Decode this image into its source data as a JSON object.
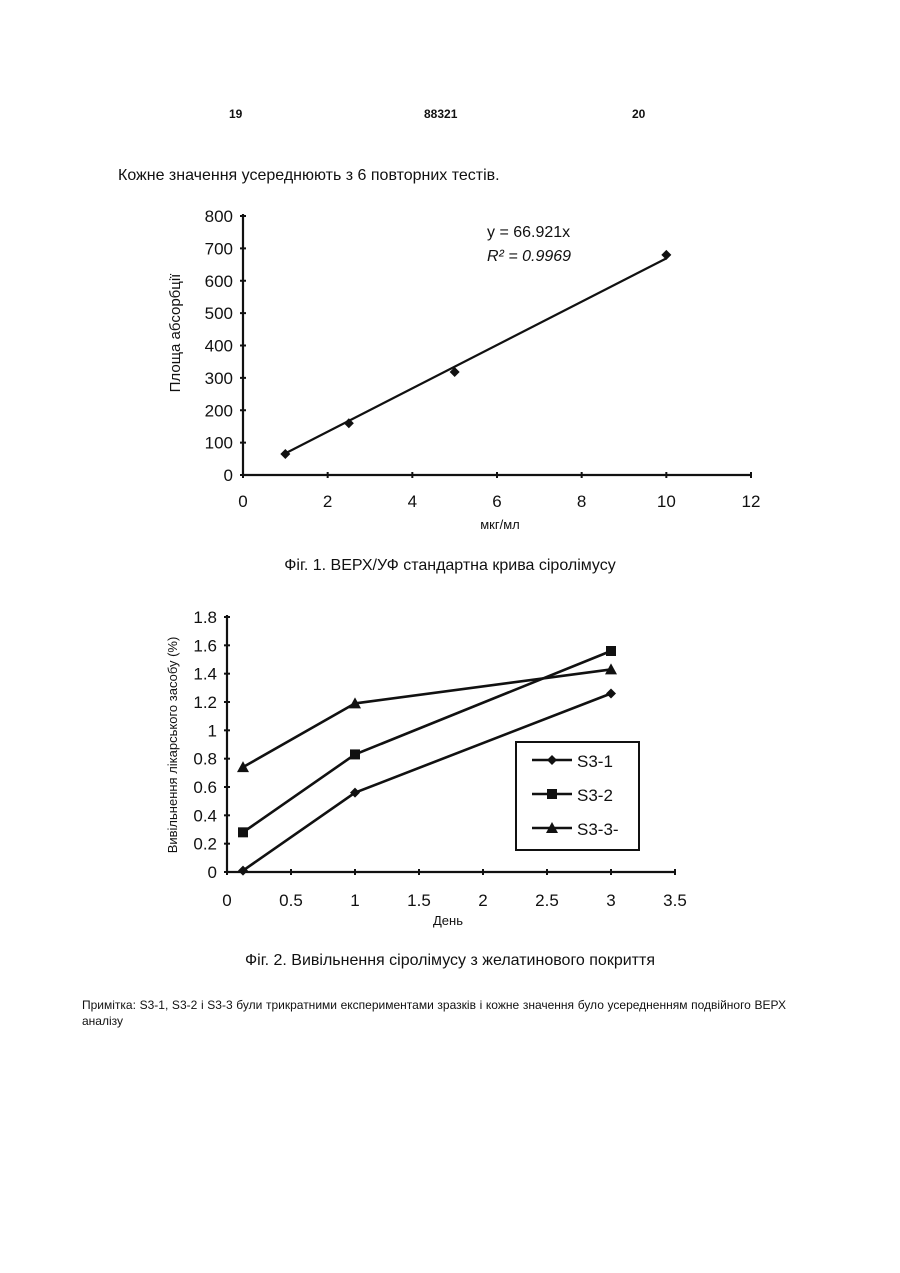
{
  "header": {
    "page_left": "19",
    "doc_number": "88321",
    "page_right": "20"
  },
  "intro_text": "Кожне значення усереднюють з 6 повторних тестів.",
  "chart_data": [
    {
      "type": "scatter",
      "xlabel": "мкг/мл",
      "ylabel": "Площа абсорбції",
      "xlim": [
        0,
        12
      ],
      "ylim": [
        0,
        800
      ],
      "x_ticks": [
        "0",
        "2",
        "4",
        "6",
        "8",
        "10",
        "12"
      ],
      "y_ticks": [
        "0",
        "100",
        "200",
        "300",
        "400",
        "500",
        "600",
        "700",
        "800"
      ],
      "grid": false,
      "series": [
        {
          "x": [
            1,
            2.5,
            5,
            10
          ],
          "values": [
            65,
            160,
            318,
            680
          ]
        }
      ],
      "trendline": {
        "slope": 66.921,
        "x_range": [
          1,
          10
        ]
      },
      "annotations": [
        "y = 66.921x",
        "R² = 0.9969"
      ]
    },
    {
      "type": "line",
      "xlabel": "День",
      "ylabel": "Вивільнення лікарського засобу (%)",
      "xlim": [
        0,
        3.5
      ],
      "ylim": [
        0,
        1.8
      ],
      "x_ticks": [
        "0",
        "0.5",
        "1",
        "1.5",
        "2",
        "2.5",
        "3",
        "3.5"
      ],
      "y_ticks": [
        "0",
        "0.2",
        "0.4",
        "0.6",
        "0.8",
        "1",
        "1.2",
        "1.4",
        "1.6",
        "1.8"
      ],
      "grid": false,
      "legend_position": "right",
      "x": [
        0.125,
        1,
        3
      ],
      "series": [
        {
          "name": "S3-1",
          "marker": "diamond",
          "values": [
            0.01,
            0.56,
            1.26
          ]
        },
        {
          "name": "S3-2",
          "marker": "square",
          "values": [
            0.28,
            0.83,
            1.56
          ]
        },
        {
          "name": "S3-3-",
          "marker": "triangle",
          "values": [
            0.74,
            1.19,
            1.43
          ]
        }
      ]
    }
  ],
  "captions": {
    "fig1": "Фіг. 1. ВЕРХ/УФ стандартна крива сіролімусу",
    "fig2": "Фіг. 2. Вивільнення сіролімусу з желатинового покриття"
  },
  "note": "Примітка: S3-1, S3-2 і S3-3 були трикратними експериментами зразків і кожне значення було усередненням подвійного ВЕРХ аналізу"
}
